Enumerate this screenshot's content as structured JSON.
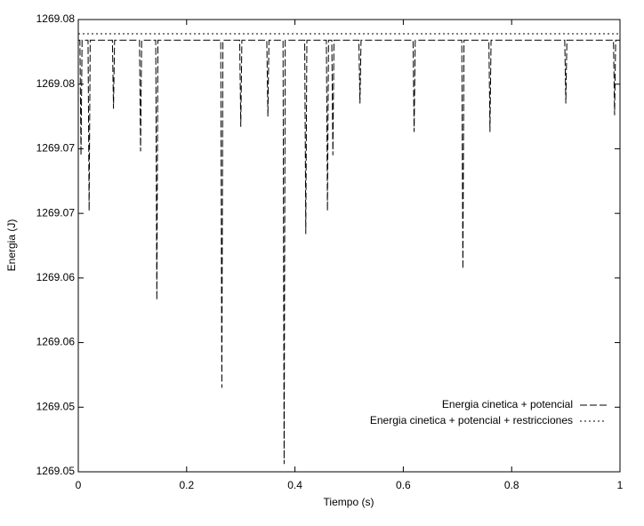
{
  "chart_data": {
    "type": "line",
    "x_label": "Tiempo (s)",
    "y_label": "Energia (J)",
    "x": [
      0,
      0.003,
      0.005,
      0.007,
      0.018,
      0.02,
      0.022,
      0.063,
      0.065,
      0.067,
      0.113,
      0.115,
      0.117,
      0.143,
      0.145,
      0.147,
      0.263,
      0.265,
      0.267,
      0.298,
      0.3,
      0.302,
      0.348,
      0.35,
      0.352,
      0.378,
      0.38,
      0.382,
      0.418,
      0.42,
      0.422,
      0.458,
      0.46,
      0.462,
      0.468,
      0.47,
      0.472,
      0.518,
      0.52,
      0.522,
      0.618,
      0.62,
      0.622,
      0.708,
      0.71,
      0.712,
      0.758,
      0.76,
      0.762,
      0.898,
      0.9,
      0.902,
      0.988,
      0.99,
      0.992,
      1
    ],
    "series": [
      {
        "name": "Energia cinetica + potencial",
        "color": "#000000",
        "linestyle": "dashed",
        "values": [
          1269.0834,
          1269.0834,
          1269.0745,
          1269.0834,
          1269.0834,
          1269.0702,
          1269.0834,
          1269.0834,
          1269.0781,
          1269.0834,
          1269.0834,
          1269.0748,
          1269.0834,
          1269.0834,
          1269.0633,
          1269.0834,
          1269.0834,
          1269.0565,
          1269.0834,
          1269.0834,
          1269.0767,
          1269.0834,
          1269.0834,
          1269.0775,
          1269.0834,
          1269.0834,
          1269.0506,
          1269.0834,
          1269.0834,
          1269.0684,
          1269.0834,
          1269.0834,
          1269.0702,
          1269.0834,
          1269.0834,
          1269.0745,
          1269.0834,
          1269.0834,
          1269.0785,
          1269.0834,
          1269.0834,
          1269.0763,
          1269.0834,
          1269.0834,
          1269.0657,
          1269.0834,
          1269.0834,
          1269.0763,
          1269.0834,
          1269.0834,
          1269.0785,
          1269.0834,
          1269.0834,
          1269.0776,
          1269.0834,
          1269.0834
        ]
      },
      {
        "name": "Energia cinetica + potencial + restricciones",
        "color": "#000000",
        "linestyle": "dotted",
        "values": [
          1269.0839,
          1269.0839,
          1269.0839,
          1269.0839,
          1269.0839,
          1269.0839,
          1269.0839,
          1269.0839,
          1269.0839,
          1269.0839,
          1269.0839,
          1269.0839,
          1269.0839,
          1269.0839,
          1269.0839,
          1269.0839,
          1269.0839,
          1269.0839,
          1269.0839,
          1269.0839,
          1269.0839,
          1269.0839,
          1269.0839,
          1269.0839,
          1269.0839,
          1269.0839,
          1269.0839,
          1269.0839,
          1269.0839,
          1269.0839,
          1269.0839,
          1269.0839,
          1269.0839,
          1269.0839,
          1269.0839,
          1269.0839,
          1269.0839,
          1269.0839,
          1269.0839,
          1269.0839,
          1269.0839,
          1269.0839,
          1269.0839,
          1269.0839,
          1269.0839,
          1269.0839,
          1269.0839,
          1269.0839,
          1269.0839,
          1269.0839,
          1269.0839,
          1269.0839,
          1269.0839,
          1269.0839,
          1269.0839,
          1269.0839
        ]
      }
    ],
    "xlim": [
      0,
      1
    ],
    "ylim": [
      1269.05,
      1269.085
    ],
    "xticks": [
      0,
      0.2,
      0.4,
      0.6,
      0.8,
      1
    ],
    "yticks": [
      {
        "value": 1269.05,
        "label": "1269.05"
      },
      {
        "value": 1269.055,
        "label": "1269.05"
      },
      {
        "value": 1269.06,
        "label": "1269.06"
      },
      {
        "value": 1269.065,
        "label": "1269.06"
      },
      {
        "value": 1269.07,
        "label": "1269.07"
      },
      {
        "value": 1269.075,
        "label": "1269.07"
      },
      {
        "value": 1269.08,
        "label": "1269.08"
      },
      {
        "value": 1269.085,
        "label": "1269.08"
      }
    ],
    "grid": false,
    "legend_position": "lower right"
  }
}
